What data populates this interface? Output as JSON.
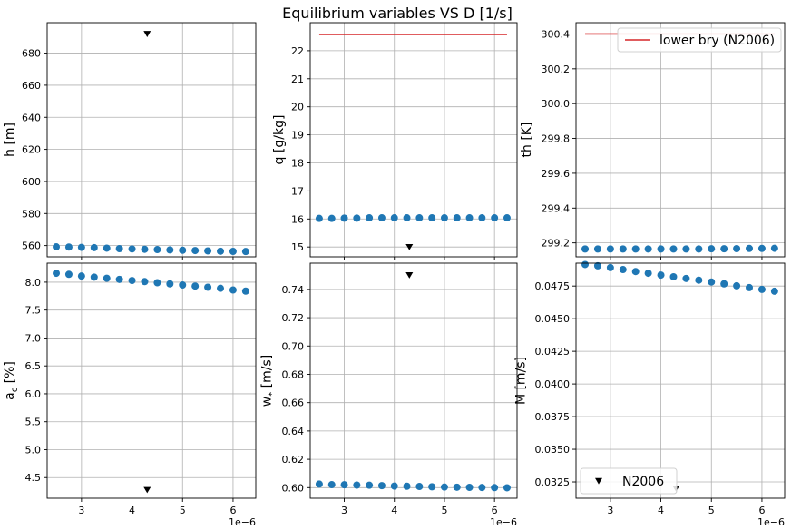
{
  "figure": {
    "suptitle": "Equilibrium variables VS D [1/s]",
    "x_multiplier": "1e−6",
    "colors": {
      "series": "#1f77b4",
      "reference": "#000000",
      "lower_bry": "#d62728",
      "grid": "#b0b0b0"
    },
    "marker_icon": "triangle-down-icon"
  },
  "chart_data": [
    {
      "type": "scatter",
      "ylabel": "h [m]",
      "ylabel_sub": "",
      "xlim": [
        2.32,
        6.45
      ],
      "ylim": [
        553,
        699
      ],
      "xticks": [
        3,
        4,
        5,
        6
      ],
      "xticklabels": [
        "3",
        "4",
        "5",
        "6"
      ],
      "yticks": [
        560,
        580,
        600,
        620,
        640,
        660,
        680
      ],
      "yticklabels": [
        "560",
        "580",
        "600",
        "620",
        "640",
        "660",
        "680"
      ],
      "show_xticklabels": false,
      "show_multiplier": false,
      "grid": true,
      "series": [
        {
          "x": [
            2.5,
            2.75,
            3.0,
            3.25,
            3.5,
            3.75,
            4.0,
            4.25,
            4.5,
            4.75,
            5.0,
            5.25,
            5.5,
            5.75,
            6.0,
            6.25
          ],
          "y": [
            559.2,
            559.1,
            558.9,
            558.7,
            558.4,
            558.1,
            557.9,
            557.7,
            557.5,
            557.3,
            557.1,
            556.9,
            556.7,
            556.5,
            556.4,
            556.3
          ]
        }
      ],
      "reference_points": [
        {
          "x": 4.3,
          "y": 692
        }
      ],
      "lines": [],
      "legend": null
    },
    {
      "type": "scatter",
      "ylabel": "q [g/kg]",
      "ylabel_sub": "",
      "xlim": [
        2.32,
        6.45
      ],
      "ylim": [
        14.65,
        23.0
      ],
      "xticks": [
        3,
        4,
        5,
        6
      ],
      "xticklabels": [
        "3",
        "4",
        "5",
        "6"
      ],
      "yticks": [
        15,
        16,
        17,
        18,
        19,
        20,
        21,
        22
      ],
      "yticklabels": [
        "15",
        "16",
        "17",
        "18",
        "19",
        "20",
        "21",
        "22"
      ],
      "show_xticklabels": false,
      "show_multiplier": false,
      "grid": true,
      "series": [
        {
          "x": [
            2.5,
            2.75,
            3.0,
            3.25,
            3.5,
            3.75,
            4.0,
            4.25,
            4.5,
            4.75,
            5.0,
            5.25,
            5.5,
            5.75,
            6.0,
            6.25
          ],
          "y": [
            16.02,
            16.02,
            16.03,
            16.03,
            16.04,
            16.04,
            16.04,
            16.04,
            16.04,
            16.04,
            16.04,
            16.04,
            16.04,
            16.04,
            16.04,
            16.04
          ]
        }
      ],
      "reference_points": [
        {
          "x": 4.3,
          "y": 15.0
        }
      ],
      "lines": [
        {
          "x": [
            2.5,
            6.25
          ],
          "y": [
            22.58,
            22.58
          ]
        }
      ],
      "legend": null
    },
    {
      "type": "scatter",
      "ylabel": "th [K]",
      "ylabel_sub": "",
      "xlim": [
        2.32,
        6.45
      ],
      "ylim": [
        299.12,
        300.465
      ],
      "xticks": [
        3,
        4,
        5,
        6
      ],
      "xticklabels": [
        "3",
        "4",
        "5",
        "6"
      ],
      "yticks": [
        299.2,
        299.4,
        299.6,
        299.8,
        300.0,
        300.2,
        300.4
      ],
      "yticklabels": [
        "299.2",
        "299.4",
        "299.6",
        "299.8",
        "300.0",
        "300.2",
        "300.4"
      ],
      "show_xticklabels": false,
      "show_multiplier": false,
      "grid": true,
      "series": [
        {
          "x": [
            2.5,
            2.75,
            3.0,
            3.25,
            3.5,
            3.75,
            4.0,
            4.25,
            4.5,
            4.75,
            5.0,
            5.25,
            5.5,
            5.75,
            6.0,
            6.25
          ],
          "y": [
            299.165,
            299.165,
            299.165,
            299.165,
            299.165,
            299.165,
            299.165,
            299.165,
            299.165,
            299.165,
            299.166,
            299.166,
            299.167,
            299.168,
            299.168,
            299.169
          ]
        }
      ],
      "reference_points": [],
      "lines": [
        {
          "x": [
            2.5,
            6.25
          ],
          "y": [
            300.4,
            300.4
          ]
        }
      ],
      "legend": {
        "label": "lower bry (N2006)",
        "kind": "line",
        "placement": "upper right"
      }
    },
    {
      "type": "scatter",
      "ylabel": "a",
      "ylabel_sub": "c",
      "ylabel_rest": " [%]",
      "xlim": [
        2.32,
        6.45
      ],
      "ylim": [
        4.13,
        8.34
      ],
      "xticks": [
        3,
        4,
        5,
        6
      ],
      "xticklabels": [
        "3",
        "4",
        "5",
        "6"
      ],
      "yticks": [
        4.5,
        5.0,
        5.5,
        6.0,
        6.5,
        7.0,
        7.5,
        8.0
      ],
      "yticklabels": [
        "4.5",
        "5.0",
        "5.5",
        "6.0",
        "6.5",
        "7.0",
        "7.5",
        "8.0"
      ],
      "show_xticklabels": true,
      "show_multiplier": true,
      "grid": true,
      "series": [
        {
          "x": [
            2.5,
            2.75,
            3.0,
            3.25,
            3.5,
            3.75,
            4.0,
            4.25,
            4.5,
            4.75,
            5.0,
            5.25,
            5.5,
            5.75,
            6.0,
            6.25
          ],
          "y": [
            8.16,
            8.14,
            8.11,
            8.09,
            8.07,
            8.05,
            8.03,
            8.01,
            7.99,
            7.97,
            7.95,
            7.93,
            7.91,
            7.89,
            7.86,
            7.84
          ]
        }
      ],
      "reference_points": [
        {
          "x": 4.3,
          "y": 4.28
        }
      ],
      "lines": [],
      "legend": null
    },
    {
      "type": "scatter",
      "ylabel": "w",
      "ylabel_sub": "*",
      "ylabel_rest": " [m/s]",
      "xlim": [
        2.32,
        6.45
      ],
      "ylim": [
        0.5925,
        0.7585
      ],
      "xticks": [
        3,
        4,
        5,
        6
      ],
      "xticklabels": [
        "3",
        "4",
        "5",
        "6"
      ],
      "yticks": [
        0.6,
        0.62,
        0.64,
        0.66,
        0.68,
        0.7,
        0.72,
        0.74
      ],
      "yticklabels": [
        "0.60",
        "0.62",
        "0.64",
        "0.66",
        "0.68",
        "0.70",
        "0.72",
        "0.74"
      ],
      "show_xticklabels": true,
      "show_multiplier": true,
      "grid": true,
      "series": [
        {
          "x": [
            2.5,
            2.75,
            3.0,
            3.25,
            3.5,
            3.75,
            4.0,
            4.25,
            4.5,
            4.75,
            5.0,
            5.25,
            5.5,
            5.75,
            6.0,
            6.25
          ],
          "y": [
            0.6025,
            0.6021,
            0.602,
            0.6018,
            0.6017,
            0.6014,
            0.6011,
            0.601,
            0.6008,
            0.6006,
            0.6004,
            0.6003,
            0.6002,
            0.6001,
            0.6,
            0.5999
          ]
        }
      ],
      "reference_points": [
        {
          "x": 4.3,
          "y": 0.75
        }
      ],
      "lines": [],
      "legend": null
    },
    {
      "type": "scatter",
      "ylabel": "M [m/s]",
      "ylabel_sub": "",
      "xlim": [
        2.32,
        6.45
      ],
      "ylim": [
        0.03125,
        0.04925
      ],
      "xticks": [
        3,
        4,
        5,
        6
      ],
      "xticklabels": [
        "3",
        "4",
        "5",
        "6"
      ],
      "yticks": [
        0.0325,
        0.035,
        0.0375,
        0.04,
        0.0425,
        0.045,
        0.0475
      ],
      "yticklabels": [
        "0.0325",
        "0.0350",
        "0.0375",
        "0.0400",
        "0.0425",
        "0.0450",
        "0.0475"
      ],
      "show_xticklabels": true,
      "show_multiplier": true,
      "grid": true,
      "series": [
        {
          "x": [
            2.5,
            2.75,
            3.0,
            3.25,
            3.5,
            3.75,
            4.0,
            4.25,
            4.5,
            4.75,
            5.0,
            5.25,
            5.5,
            5.75,
            6.0,
            6.25
          ],
          "y": [
            0.04915,
            0.04905,
            0.04891,
            0.04876,
            0.04861,
            0.04848,
            0.04834,
            0.04821,
            0.04808,
            0.04795,
            0.04781,
            0.04767,
            0.04752,
            0.04738,
            0.04724,
            0.0471
          ]
        }
      ],
      "reference_points": [
        {
          "x": 4.3,
          "y": 0.032
        }
      ],
      "lines": [],
      "legend": {
        "label": "N2006",
        "kind": "marker",
        "placement": "lower left"
      }
    }
  ]
}
